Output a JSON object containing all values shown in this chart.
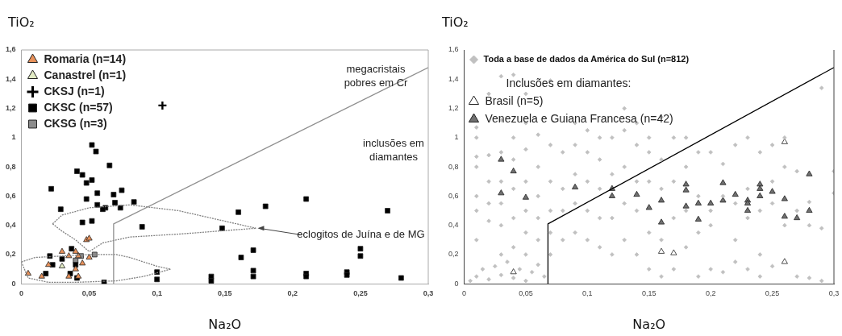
{
  "chart_data": [
    {
      "type": "scatter",
      "xlabel": "Na₂O",
      "ylabel": "TiO₂",
      "xlim": [
        0,
        0.3
      ],
      "ylim": [
        0,
        1.6
      ],
      "grid": false,
      "legend": "top left",
      "xticks": [
        {
          "value": 0,
          "label": "0"
        },
        {
          "value": 0.05,
          "label": "0,05"
        },
        {
          "value": 0.1,
          "label": "0,1"
        },
        {
          "value": 0.15,
          "label": "0,15"
        },
        {
          "value": 0.2,
          "label": "0,2"
        },
        {
          "value": 0.25,
          "label": "0,25"
        },
        {
          "value": 0.3,
          "label": "0,3"
        }
      ],
      "yticks": [
        {
          "value": 0,
          "label": "0"
        },
        {
          "value": 0.2,
          "label": "0,2"
        },
        {
          "value": 0.4,
          "label": "0,4"
        },
        {
          "value": 0.6,
          "label": "0,6"
        },
        {
          "value": 0.8,
          "label": "0,8"
        },
        {
          "value": 1,
          "label": "1"
        },
        {
          "value": 1.2,
          "label": "1,2"
        },
        {
          "value": 1.4,
          "label": "1,4"
        },
        {
          "value": 1.6,
          "label": "1,6"
        }
      ],
      "annotations": [
        "megacristais pobres em Cr",
        "inclusões em diamantes",
        {
          "text": "eclogitos de Juína e de MG",
          "x": 0.173,
          "y": 0.38
        }
      ],
      "series": [
        {
          "type": "line",
          "color": "#909090",
          "line_style": "solid",
          "marker": "none",
          "x": [
            0.068,
            0.068,
            0.3
          ],
          "values": [
            0,
            0.41,
            1.48
          ]
        },
        {
          "type": "line",
          "color": "#808080",
          "line_style": "dotted",
          "marker": "none",
          "x": [
            0.023,
            0.03,
            0.05,
            0.08,
            0.116,
            0.173
          ],
          "values": [
            0.41,
            0.47,
            0.52,
            0.54,
            0.5,
            0.38
          ]
        },
        {
          "type": "line",
          "color": "#808080",
          "line_style": "dotted",
          "marker": "none",
          "x": [
            0.023,
            0.03,
            0.04,
            0.05,
            0.06,
            0.08,
            0.116,
            0.173
          ],
          "values": [
            0.41,
            0.36,
            0.3,
            0.22,
            0.28,
            0.32,
            0.34,
            0.38
          ]
        },
        {
          "type": "line",
          "color": "#808080",
          "line_style": "dotted",
          "marker": "none",
          "x": [
            0.0,
            0.01,
            0.03,
            0.05,
            0.07,
            0.08,
            0.1,
            0.11
          ],
          "values": [
            0.15,
            0.18,
            0.19,
            0.2,
            0.2,
            0.18,
            0.12,
            0.1
          ]
        },
        {
          "type": "line",
          "color": "#808080",
          "line_style": "dotted",
          "marker": "none",
          "x": [
            0.0,
            0.005,
            0.02,
            0.04,
            0.07,
            0.09,
            0.11
          ],
          "values": [
            0.15,
            0.04,
            0.01,
            0.01,
            0.02,
            0.05,
            0.1
          ]
        },
        {
          "name": "Romaria (n=14)",
          "color": "#e8915a",
          "marker": "triangle",
          "x": [
            0.005,
            0.015,
            0.02,
            0.03,
            0.035,
            0.04,
            0.042,
            0.04,
            0.045,
            0.042,
            0.048,
            0.05,
            0.05,
            0.035
          ],
          "values": [
            0.07,
            0.05,
            0.13,
            0.22,
            0.19,
            0.22,
            0.19,
            0.1,
            0.14,
            0.05,
            0.3,
            0.31,
            0.18,
            0.05
          ]
        },
        {
          "name": "Canastrel (n=1)",
          "color": "#e2ebc4",
          "marker": "triangle",
          "x": [
            0.03
          ],
          "values": [
            0.12
          ]
        },
        {
          "name": "CKSJ (n=1)",
          "color": "#000000",
          "marker": "cross",
          "x": [
            0.104
          ],
          "values": [
            1.22
          ]
        },
        {
          "name": "CKSC (n=57)",
          "color": "#000000",
          "marker": "square",
          "x": [
            0.052,
            0.055,
            0.065,
            0.041,
            0.045,
            0.052,
            0.048,
            0.022,
            0.074,
            0.056,
            0.068,
            0.048,
            0.029,
            0.056,
            0.069,
            0.062,
            0.06,
            0.073,
            0.083,
            0.045,
            0.052,
            0.089,
            0.21,
            0.18,
            0.16,
            0.148,
            0.27,
            0.021,
            0.023,
            0.018,
            0.03,
            0.036,
            0.037,
            0.04,
            0.041,
            0.061,
            0.1,
            0.1,
            0.14,
            0.14,
            0.162,
            0.171,
            0.171,
            0.171,
            0.21,
            0.21,
            0.24,
            0.24,
            0.25,
            0.25,
            0.28
          ],
          "values": [
            0.95,
            0.905,
            0.81,
            0.77,
            0.745,
            0.71,
            0.69,
            0.65,
            0.64,
            0.62,
            0.61,
            0.58,
            0.51,
            0.54,
            0.555,
            0.52,
            0.51,
            0.52,
            0.56,
            0.42,
            0.43,
            0.39,
            0.58,
            0.53,
            0.49,
            0.38,
            0.5,
            0.19,
            0.13,
            0.07,
            0.17,
            0.07,
            0.24,
            0.13,
            0.04,
            0.01,
            0.08,
            0.03,
            0.05,
            0.02,
            0.18,
            0.09,
            0.05,
            0.23,
            0.07,
            0.05,
            0.08,
            0.06,
            0.24,
            0.19,
            0.04
          ]
        },
        {
          "name": "CKSG (n=3)",
          "color": "#8c8c8c",
          "marker": "square",
          "x": [
            0.04,
            0.054,
            0.044
          ],
          "values": [
            0.16,
            0.2,
            0.19
          ]
        }
      ]
    },
    {
      "type": "scatter",
      "xlabel": "Na₂O",
      "ylabel": "TiO₂",
      "xlim": [
        0,
        0.3
      ],
      "ylim": [
        0,
        1.6
      ],
      "grid": false,
      "legend": "top left",
      "legend_title": "Inclusões em diamantes:",
      "xticks": [
        {
          "value": 0,
          "label": "0"
        },
        {
          "value": 0.05,
          "label": "0,05"
        },
        {
          "value": 0.1,
          "label": "0,1"
        },
        {
          "value": 0.15,
          "label": "0,15"
        },
        {
          "value": 0.2,
          "label": "0,2"
        },
        {
          "value": 0.25,
          "label": "0,25"
        },
        {
          "value": 0.3,
          "label": "0,3"
        }
      ],
      "yticks": [
        {
          "value": 0,
          "label": "0"
        },
        {
          "value": 0.2,
          "label": "0,2"
        },
        {
          "value": 0.4,
          "label": "0,4"
        },
        {
          "value": 0.6,
          "label": "0,6"
        },
        {
          "value": 0.8,
          "label": "0,8"
        },
        {
          "value": 1,
          "label": "1"
        },
        {
          "value": 1.2,
          "label": "1,2"
        },
        {
          "value": 1.4,
          "label": "1,4"
        },
        {
          "value": 1.6,
          "label": "1,6"
        }
      ],
      "series": [
        {
          "name": "Toda a base de dados da América do Sul (n=812)",
          "color": "#c0c0c0",
          "marker": "diamond",
          "x": [
            0.005,
            0.01,
            0.015,
            0.02,
            0.025,
            0.03,
            0.035,
            0.04,
            0.045,
            0.05,
            0.055,
            0.06,
            0.065,
            0.01,
            0.01,
            0.01,
            0.01,
            0.01,
            0.01,
            0.01,
            0.02,
            0.02,
            0.02,
            0.02,
            0.02,
            0.03,
            0.03,
            0.03,
            0.03,
            0.03,
            0.03,
            0.03,
            0.04,
            0.04,
            0.04,
            0.04,
            0.04,
            0.04,
            0.05,
            0.05,
            0.05,
            0.05,
            0.05,
            0.05,
            0.05,
            0.06,
            0.06,
            0.06,
            0.06,
            0.06,
            0.07,
            0.07,
            0.07,
            0.07,
            0.07,
            0.07,
            0.08,
            0.08,
            0.08,
            0.08,
            0.09,
            0.09,
            0.09,
            0.09,
            0.09,
            0.1,
            0.1,
            0.1,
            0.1,
            0.1,
            0.11,
            0.11,
            0.11,
            0.11,
            0.11,
            0.12,
            0.12,
            0.12,
            0.12,
            0.13,
            0.13,
            0.13,
            0.13,
            0.13,
            0.14,
            0.14,
            0.14,
            0.14,
            0.14,
            0.15,
            0.15,
            0.15,
            0.15,
            0.15,
            0.16,
            0.16,
            0.16,
            0.16,
            0.16,
            0.17,
            0.17,
            0.17,
            0.17,
            0.18,
            0.18,
            0.18,
            0.18,
            0.19,
            0.19,
            0.19,
            0.19,
            0.2,
            0.2,
            0.2,
            0.2,
            0.21,
            0.21,
            0.21,
            0.22,
            0.22,
            0.22,
            0.22,
            0.23,
            0.23,
            0.23,
            0.23,
            0.24,
            0.24,
            0.24,
            0.24,
            0.25,
            0.25,
            0.25,
            0.25,
            0.26,
            0.26,
            0.26,
            0.27,
            0.27,
            0.27,
            0.28,
            0.28,
            0.28,
            0.29,
            0.29,
            0.29,
            0.3,
            0.3
          ],
          "values": [
            0.02,
            0.05,
            0.1,
            0.03,
            0.12,
            0.06,
            0.15,
            0.04,
            0.1,
            0.02,
            0.08,
            0.13,
            0.05,
            0.3,
            0.5,
            0.6,
            0.8,
            0.87,
            1.0,
            1.07,
            0.43,
            0.55,
            0.7,
            0.88,
            1.3,
            0.2,
            0.4,
            0.55,
            0.7,
            0.9,
            1.12,
            1.42,
            0.25,
            0.45,
            0.65,
            0.85,
            1.0,
            1.43,
            0.2,
            0.35,
            0.5,
            0.7,
            0.92,
            1.1,
            1.3,
            0.3,
            0.45,
            0.6,
            0.8,
            1.02,
            0.2,
            0.35,
            0.5,
            0.7,
            0.95,
            1.39,
            0.3,
            0.5,
            0.65,
            0.9,
            0.35,
            0.55,
            0.75,
            0.95,
            1.1,
            0.3,
            0.5,
            0.7,
            0.9,
            1.05,
            0.25,
            0.45,
            0.65,
            0.85,
            1.0,
            0.2,
            0.45,
            0.75,
            1.0,
            0.3,
            0.55,
            0.8,
            1.05,
            1.2,
            0.2,
            0.5,
            0.7,
            0.95,
            1.1,
            0.1,
            0.35,
            0.7,
            0.9,
            1.0,
            0.05,
            0.3,
            0.65,
            0.85,
            1.14,
            0.1,
            0.45,
            0.7,
            1.0,
            0.25,
            0.5,
            0.8,
            1.0,
            0.05,
            0.35,
            0.6,
            0.9,
            0.1,
            0.4,
            0.5,
            0.9,
            0.08,
            0.6,
            0.82,
            0.15,
            0.3,
            0.55,
            0.95,
            0.1,
            0.45,
            0.65,
            1.0,
            0.05,
            0.2,
            0.5,
            0.9,
            0.12,
            0.55,
            0.7,
            0.95,
            0.4,
            0.8,
            1.0,
            0.05,
            0.5,
            0.77,
            0.04,
            0.4,
            0.56,
            0.02,
            0.38,
            1.34,
            0.77,
            0.62
          ]
        },
        {
          "type": "line",
          "color": "#000000",
          "line_style": "solid",
          "marker": "none",
          "x": [
            0.068,
            0.068,
            0.3
          ],
          "values": [
            0,
            0.41,
            1.48
          ]
        },
        {
          "name": "Brasil (n=5)",
          "color": "#ffffff",
          "marker": "triangle",
          "x": [
            0.04,
            0.16,
            0.17,
            0.26,
            0.26
          ],
          "values": [
            0.08,
            0.22,
            0.21,
            0.97,
            0.15
          ]
        },
        {
          "name": "Venezuela e Guiana Francesa (n=42)",
          "color": "#707070",
          "marker": "triangle",
          "x": [
            0.03,
            0.03,
            0.04,
            0.05,
            0.09,
            0.12,
            0.12,
            0.14,
            0.15,
            0.16,
            0.16,
            0.18,
            0.18,
            0.18,
            0.19,
            0.19,
            0.2,
            0.21,
            0.21,
            0.22,
            0.23,
            0.23,
            0.23,
            0.24,
            0.24,
            0.24,
            0.25,
            0.26,
            0.26,
            0.27,
            0.28,
            0.28
          ],
          "values": [
            0.85,
            0.62,
            0.77,
            0.59,
            0.66,
            0.65,
            0.6,
            0.61,
            0.52,
            0.57,
            0.42,
            0.68,
            0.64,
            0.53,
            0.55,
            0.44,
            0.55,
            0.69,
            0.57,
            0.61,
            0.57,
            0.55,
            0.5,
            0.68,
            0.65,
            0.6,
            0.63,
            0.58,
            0.46,
            0.45,
            0.75,
            0.5
          ]
        }
      ]
    }
  ]
}
